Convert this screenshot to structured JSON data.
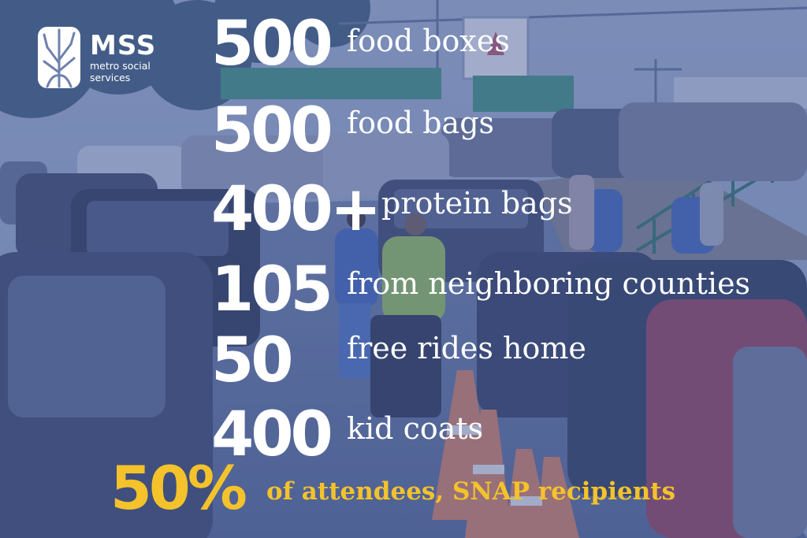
{
  "logo": {
    "abbr": "MSS",
    "line1": "metro social",
    "line2": "services",
    "icon": "tree-icon"
  },
  "stats": [
    {
      "number": "500",
      "label": "food boxes"
    },
    {
      "number": "500",
      "label": "food bags"
    },
    {
      "number": "400+",
      "label": "protein bags"
    },
    {
      "number": "105",
      "label": "from neighboring counties"
    },
    {
      "number": "50",
      "label": "free rides home"
    },
    {
      "number": "400",
      "label": "kid coats"
    }
  ],
  "highlight": {
    "number": "50%",
    "label": "of attendees, SNAP recipients"
  },
  "colors": {
    "text": "#ffffff",
    "accent": "#f4c22b",
    "overlay": "#4a60a0"
  }
}
